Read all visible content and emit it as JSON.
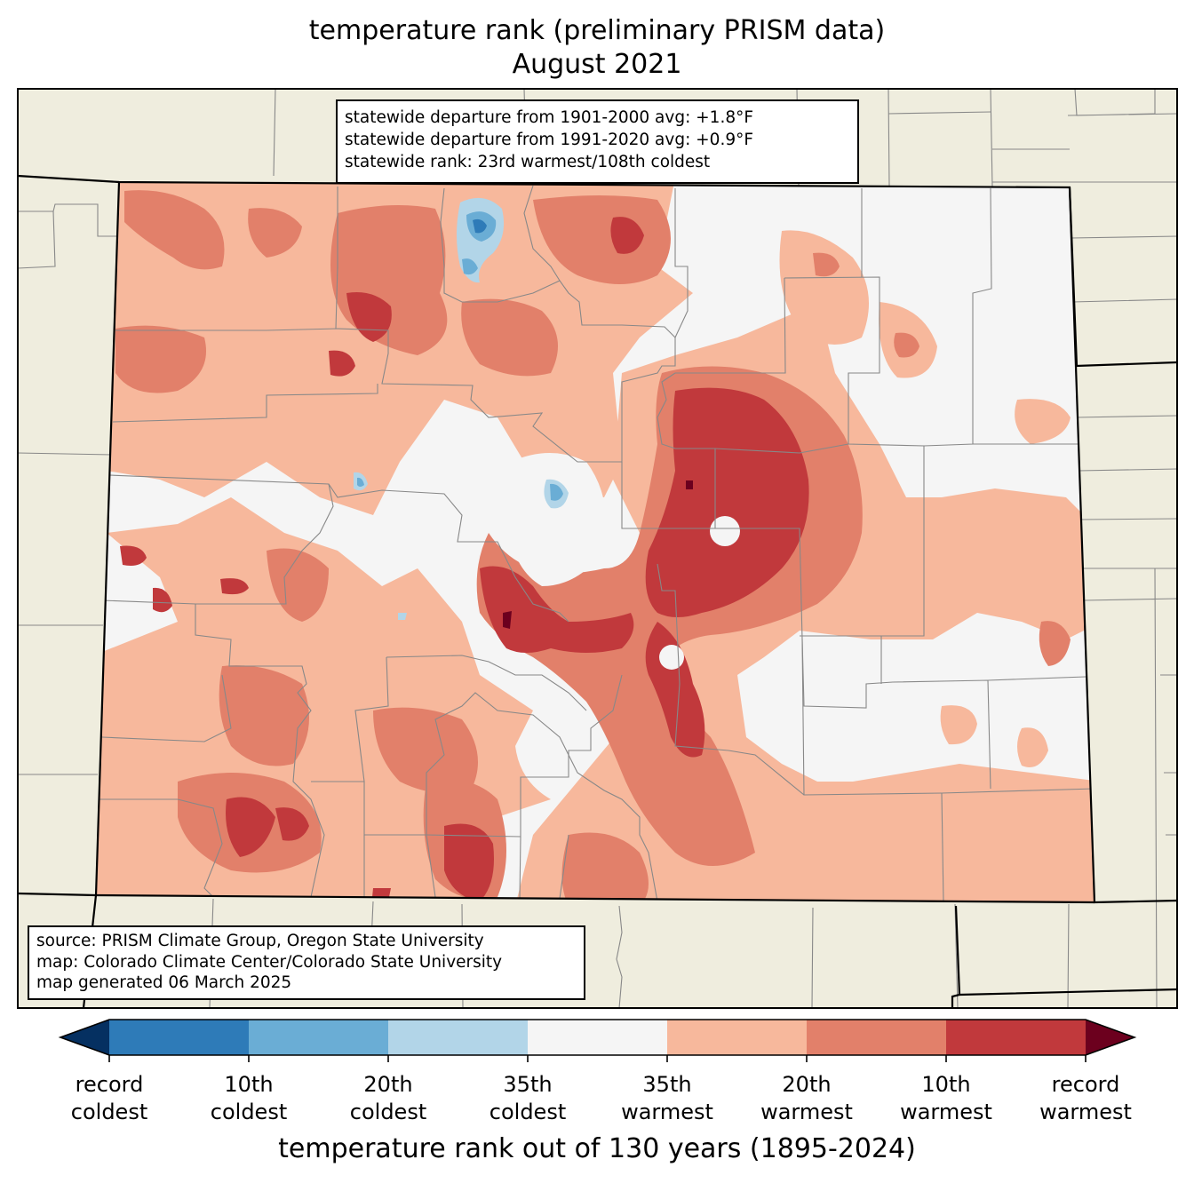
{
  "title": {
    "line1": "temperature rank (preliminary PRISM data)",
    "line2": "August 2021"
  },
  "stats": {
    "line1": "statewide departure from 1901-2000 avg: +1.8°F",
    "line2": "statewide departure from 1991-2020 avg: +0.9°F",
    "line3": "statewide rank: 23rd warmest/108th coldest"
  },
  "source": {
    "line1": "source: PRISM Climate Group, Oregon State University",
    "line2": "map: Colorado Climate Center/Colorado State University",
    "line3": "map generated 06 March 2025"
  },
  "colors": {
    "land_outside": "#efedde",
    "record_coldest": "#053061",
    "coldest_10th": "#2e7bb8",
    "coldest_20th": "#6aadd5",
    "coldest_35th": "#b2d5e8",
    "near_normal": "#f5f5f5",
    "warmest_35th": "#f7b89c",
    "warmest_20th": "#e2806a",
    "warmest_10th": "#c1393c",
    "record_warmest": "#6c001e",
    "county_line": "#888888",
    "state_line": "#000000"
  },
  "colorbar": {
    "label": "temperature rank out of 130 years (1895-2024)",
    "ticks": [
      {
        "line1": "record",
        "line2": "coldest"
      },
      {
        "line1": "10th",
        "line2": "coldest"
      },
      {
        "line1": "20th",
        "line2": "coldest"
      },
      {
        "line1": "35th",
        "line2": "coldest"
      },
      {
        "line1": "35th",
        "line2": "warmest"
      },
      {
        "line1": "20th",
        "line2": "warmest"
      },
      {
        "line1": "10th",
        "line2": "warmest"
      },
      {
        "line1": "record",
        "line2": "warmest"
      }
    ]
  }
}
